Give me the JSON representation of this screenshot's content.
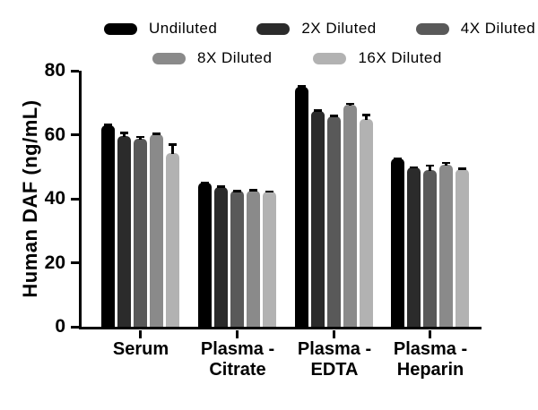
{
  "chart_data": {
    "type": "bar",
    "title": "",
    "ylabel": "Human DAF (ng/mL)",
    "xlabel": "",
    "ylim": [
      0,
      80
    ],
    "yticks": [
      0,
      20,
      40,
      60,
      80
    ],
    "grid": false,
    "legend_position": "top",
    "error_bar_color": "#000000",
    "categories": [
      "Serum",
      "Plasma - Citrate",
      "Plasma - EDTA",
      "Plasma - Heparin"
    ],
    "category_label_lines": [
      [
        "Serum"
      ],
      [
        "Plasma -",
        "Citrate"
      ],
      [
        "Plasma -",
        "EDTA"
      ],
      [
        "Plasma -",
        "Heparin"
      ]
    ],
    "series": [
      {
        "name": "Undiluted",
        "color": "#000000",
        "values": [
          63.0,
          45.0,
          75.0,
          52.7
        ],
        "errors": [
          0.5,
          0.3,
          0.4,
          0.3
        ]
      },
      {
        "name": "2X Diluted",
        "color": "#2b2b2b",
        "values": [
          59.5,
          43.7,
          67.5,
          49.9
        ],
        "errors": [
          1.4,
          0.5,
          0.4,
          0.3
        ]
      },
      {
        "name": "4X Diluted",
        "color": "#595959",
        "values": [
          58.8,
          42.4,
          65.8,
          48.9
        ],
        "errors": [
          0.9,
          0.3,
          0.4,
          1.8
        ]
      },
      {
        "name": "8X Diluted",
        "color": "#8a8a8a",
        "values": [
          60.2,
          42.6,
          69.5,
          50.6
        ],
        "errors": [
          0.5,
          0.4,
          0.5,
          1.0
        ]
      },
      {
        "name": "16X Diluted",
        "color": "#b2b2b2",
        "values": [
          54.3,
          42.2,
          65.0,
          49.3
        ],
        "errors": [
          3.0,
          0.4,
          1.5,
          0.4
        ]
      }
    ]
  }
}
